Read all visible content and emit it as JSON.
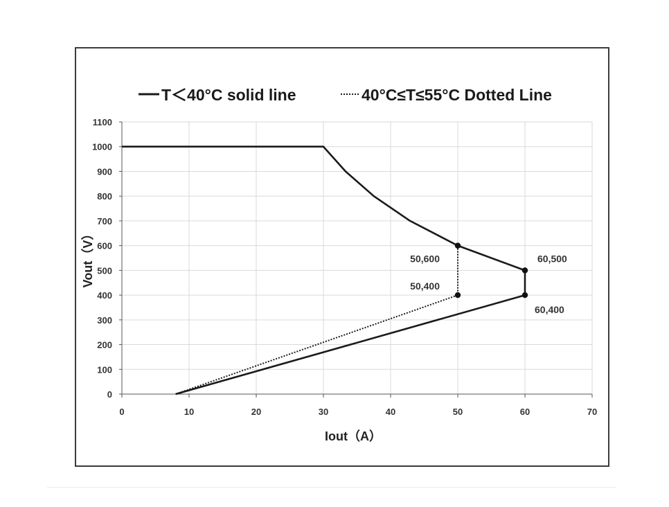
{
  "chart_data": {
    "type": "line",
    "xlabel": "Iout（A）",
    "ylabel": "Vout（V）",
    "xlim": [
      0,
      70
    ],
    "ylim": [
      0,
      1100
    ],
    "x_ticks": [
      "0",
      "10",
      "20",
      "30",
      "40",
      "50",
      "60",
      "70"
    ],
    "y_ticks": [
      "0",
      "100",
      "200",
      "300",
      "400",
      "500",
      "600",
      "700",
      "800",
      "900",
      "1000",
      "1100"
    ],
    "grid": true,
    "legend_position": "top",
    "series": [
      {
        "name": "T＜40°C solid line",
        "style": "solid",
        "color": "#1a1a1a",
        "points": [
          [
            0,
            1000
          ],
          [
            30,
            1000
          ],
          [
            33.3,
            900
          ],
          [
            37.5,
            800
          ],
          [
            42.9,
            700
          ],
          [
            50,
            600
          ],
          [
            60,
            500
          ],
          [
            60,
            400
          ],
          [
            8,
            0
          ]
        ]
      },
      {
        "name": "40°C≤T≤55°C Dotted Line",
        "style": "dotted",
        "color": "#1a1a1a",
        "points": [
          [
            50,
            600
          ],
          [
            50,
            400
          ],
          [
            8,
            0
          ]
        ]
      }
    ],
    "markers": [
      {
        "x": 50,
        "y": 600,
        "label": "50,600"
      },
      {
        "x": 50,
        "y": 400,
        "label": "50,400"
      },
      {
        "x": 60,
        "y": 500,
        "label": "60,500"
      },
      {
        "x": 60,
        "y": 400,
        "label": "60,400"
      }
    ]
  }
}
